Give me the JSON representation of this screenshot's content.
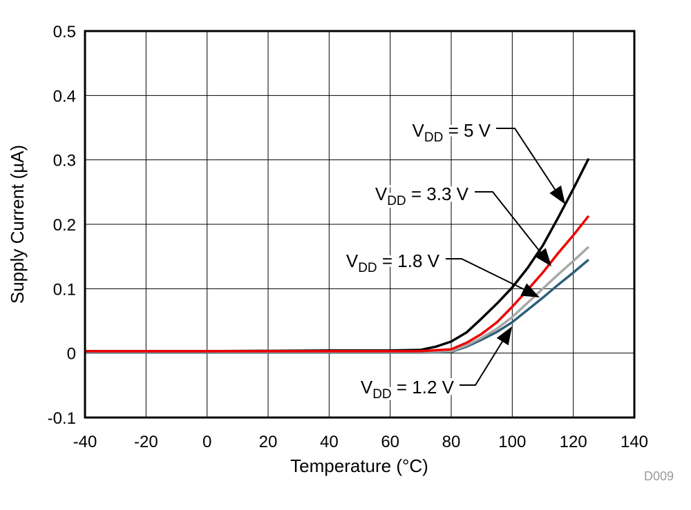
{
  "chart_data": {
    "type": "line",
    "title": "",
    "xlabel": "Temperature (°C)",
    "ylabel": "Supply Current (µA)",
    "xlim": [
      -40,
      140
    ],
    "ylim": [
      -0.1,
      0.5
    ],
    "xticks": [
      -40,
      -20,
      0,
      20,
      40,
      60,
      80,
      100,
      120,
      140
    ],
    "yticks": [
      -0.1,
      0,
      0.1,
      0.2,
      0.3,
      0.4,
      0.5
    ],
    "xtick_labels": [
      "-40",
      "-20",
      "0",
      "20",
      "40",
      "60",
      "80",
      "100",
      "120",
      "140"
    ],
    "ytick_labels": [
      "-0.1",
      "0",
      "0.1",
      "0.2",
      "0.3",
      "0.4",
      "0.5"
    ],
    "grid": true,
    "watermark": "D009",
    "series": [
      {
        "name": "VDD = 1.2 V",
        "color": "#2e5f78",
        "x": [
          -40,
          0,
          40,
          70,
          80,
          85,
          90,
          95,
          100,
          105,
          110,
          115,
          120,
          125
        ],
        "y": [
          0.001,
          0.001,
          0.001,
          0.001,
          0.002,
          0.01,
          0.021,
          0.033,
          0.048,
          0.067,
          0.086,
          0.106,
          0.125,
          0.145
        ]
      },
      {
        "name": "VDD = 1.8 V",
        "color": "#a8a8a8",
        "x": [
          -40,
          0,
          40,
          70,
          80,
          85,
          90,
          95,
          100,
          105,
          110,
          115,
          120,
          125
        ],
        "y": [
          0.002,
          0.002,
          0.002,
          0.002,
          0.003,
          0.012,
          0.024,
          0.038,
          0.056,
          0.078,
          0.1,
          0.122,
          0.143,
          0.165
        ]
      },
      {
        "name": "VDD = 5 V",
        "color": "#000000",
        "x": [
          -40,
          0,
          40,
          60,
          70,
          75,
          80,
          85,
          90,
          95,
          100,
          105,
          110,
          115,
          120,
          125
        ],
        "y": [
          0.003,
          0.003,
          0.004,
          0.004,
          0.005,
          0.01,
          0.018,
          0.032,
          0.054,
          0.077,
          0.102,
          0.132,
          0.167,
          0.21,
          0.255,
          0.302
        ]
      },
      {
        "name": "VDD = 3.3 V",
        "color": "#ee0000",
        "x": [
          -40,
          0,
          40,
          70,
          80,
          85,
          90,
          95,
          100,
          105,
          110,
          115,
          120,
          125
        ],
        "y": [
          0.003,
          0.003,
          0.003,
          0.003,
          0.006,
          0.016,
          0.03,
          0.048,
          0.072,
          0.098,
          0.125,
          0.155,
          0.183,
          0.213
        ]
      }
    ],
    "annotations": [
      {
        "main": "V",
        "sub": "DD",
        "rest": " = 5 V",
        "series": "VDD = 5 V"
      },
      {
        "main": "V",
        "sub": "DD",
        "rest": " = 3.3 V",
        "series": "VDD = 3.3 V"
      },
      {
        "main": "V",
        "sub": "DD",
        "rest": " = 1.8 V",
        "series": "VDD = 1.8 V"
      },
      {
        "main": "V",
        "sub": "DD",
        "rest": " = 1.2 V",
        "series": "VDD = 1.2 V"
      }
    ]
  }
}
